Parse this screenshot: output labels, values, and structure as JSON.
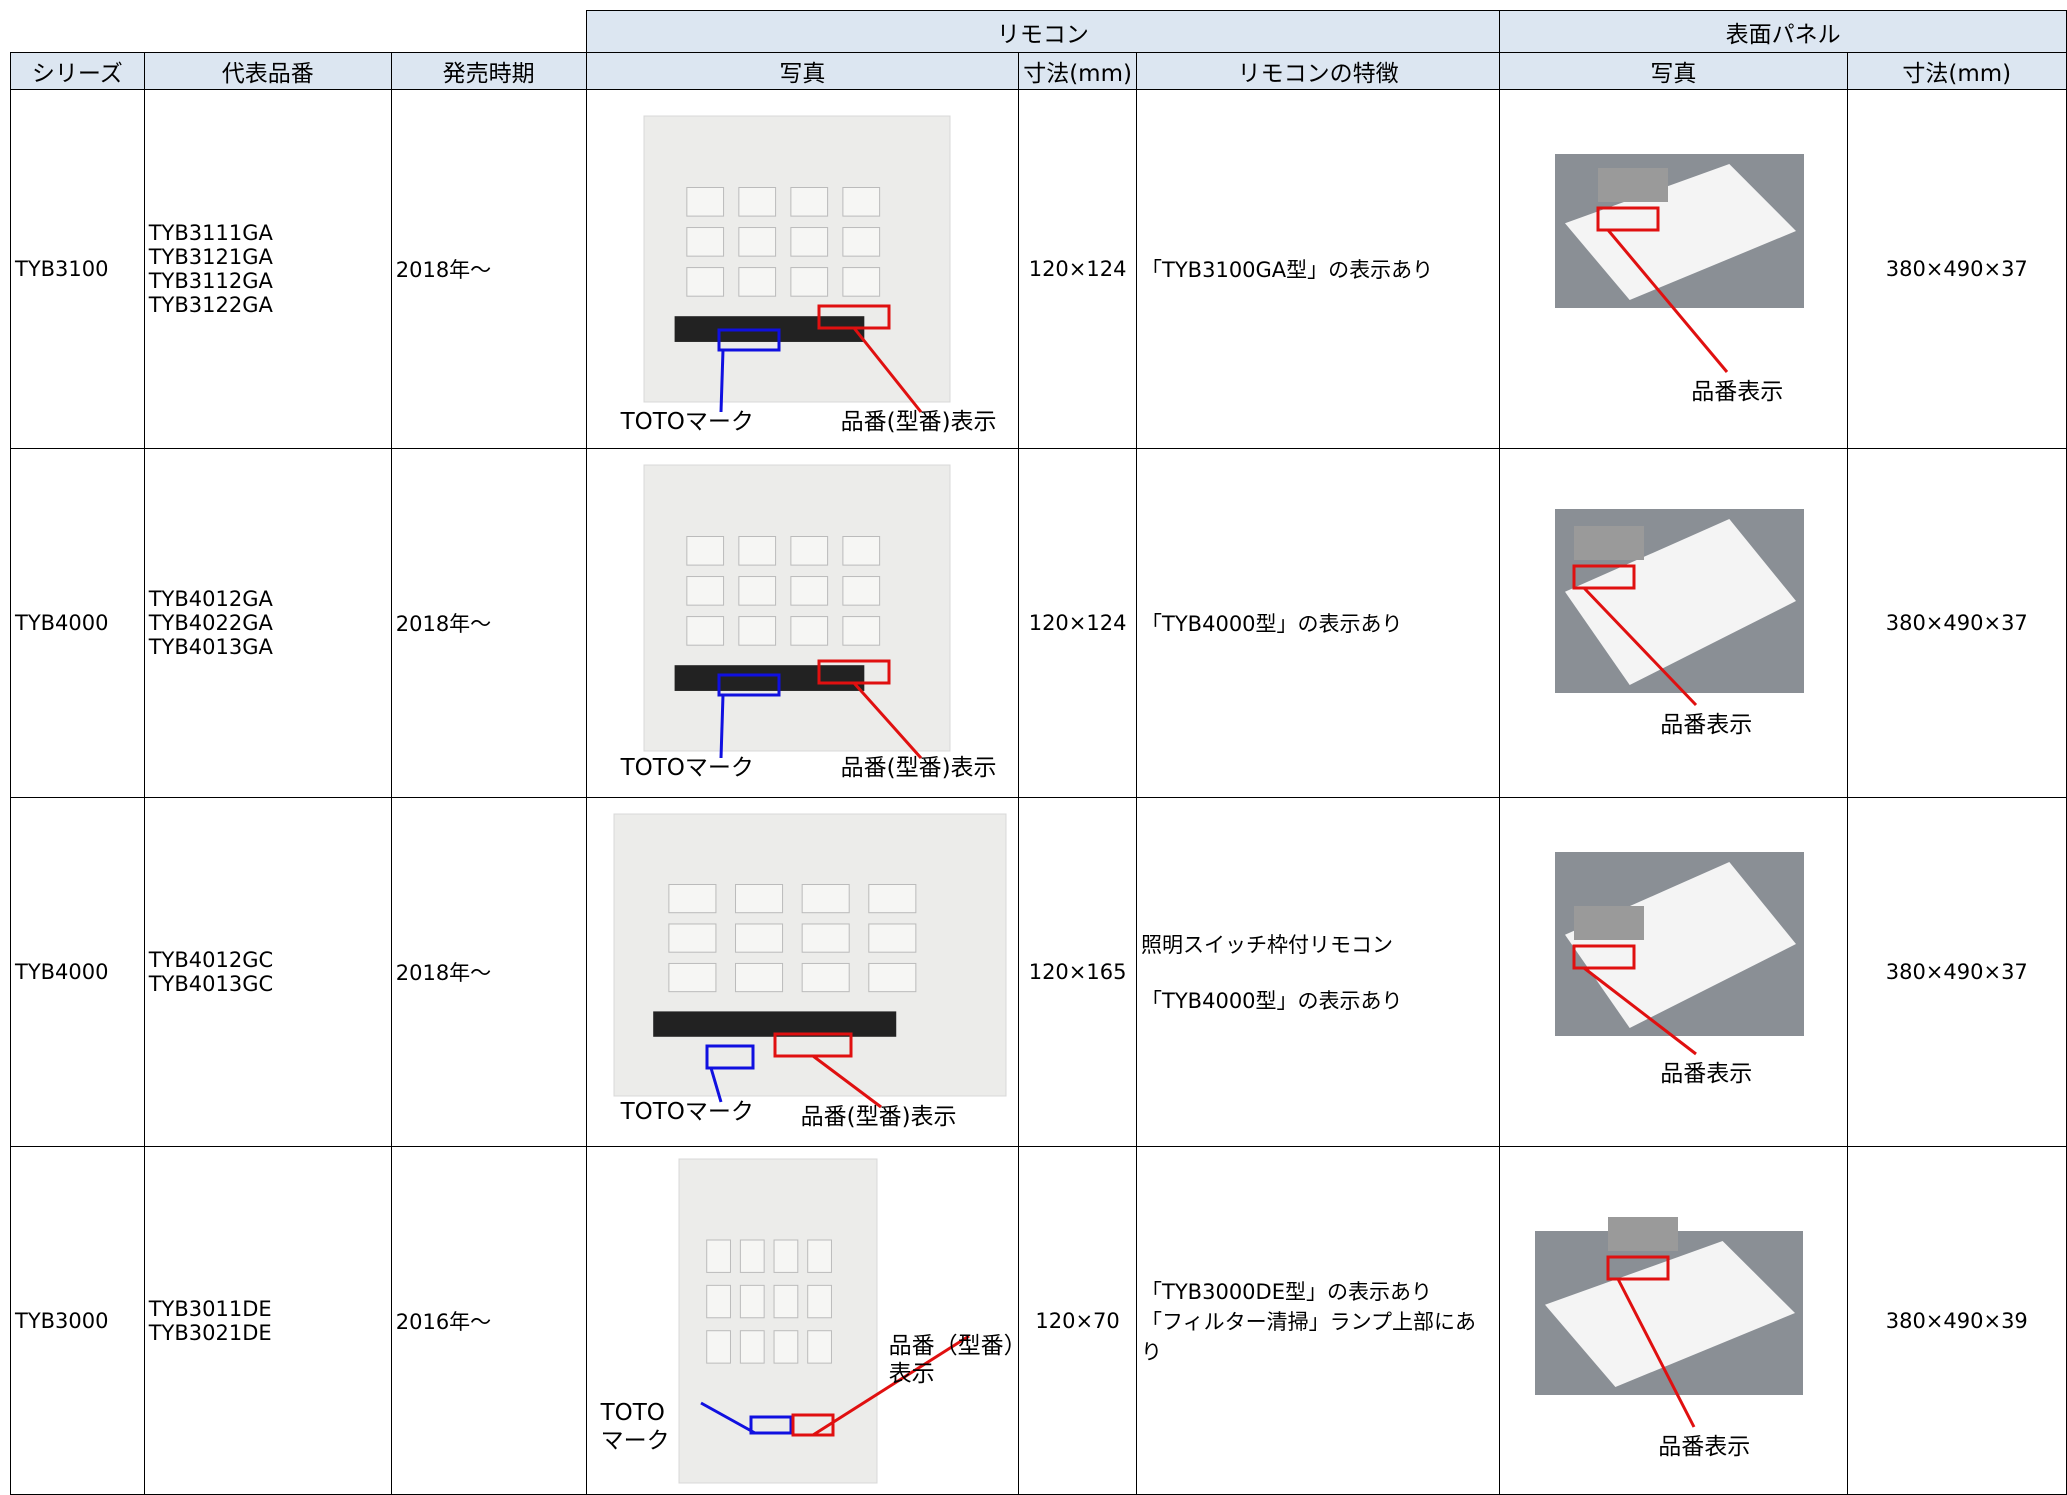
{
  "header": {
    "groups": [
      "リモコン",
      "表面パネル"
    ],
    "columns": [
      "シリーズ",
      "代表品番",
      "発売時期",
      "写真",
      "寸法(mm)",
      "リモコンの特徴",
      "写真",
      "寸法(mm)"
    ]
  },
  "rows": [
    {
      "series": "TYB3100",
      "models": [
        "TYB3111GA",
        "TYB3121GA",
        "TYB3112GA",
        "TYB3122GA"
      ],
      "release": "2018年～",
      "remote_mark_label": [
        "TOTOマーク"
      ],
      "remote_model_label": [
        "品番(型番)表示"
      ],
      "remote_size": "120×124",
      "features": [
        "「TYB3100GA型」の表示あり"
      ],
      "panel_label": "品番表示",
      "panel_size": "380×490×37"
    },
    {
      "series": "TYB4000",
      "models": [
        "TYB4012GA",
        "TYB4022GA",
        "TYB4013GA"
      ],
      "release": "2018年～",
      "remote_mark_label": [
        "TOTOマーク"
      ],
      "remote_model_label": [
        "品番(型番)表示"
      ],
      "remote_size": "120×124",
      "features": [
        "「TYB4000型」の表示あり"
      ],
      "panel_label": "品番表示",
      "panel_size": "380×490×37"
    },
    {
      "series": "TYB4000",
      "models": [
        "TYB4012GC",
        "TYB4013GC"
      ],
      "release": "2018年～",
      "remote_mark_label": [
        "TOTOマーク"
      ],
      "remote_model_label": [
        "品番(型番)表示"
      ],
      "remote_size": "120×165",
      "features": [
        "照明スイッチ枠付リモコン",
        "「TYB4000型」の表示あり"
      ],
      "panel_label": "品番表示",
      "panel_size": "380×490×37"
    },
    {
      "series": "TYB3000",
      "models": [
        "TYB3011DE",
        "TYB3021DE"
      ],
      "release": "2016年～",
      "remote_mark_label": [
        "TOTO",
        "マーク"
      ],
      "remote_model_label": [
        "品番（型番）",
        "表示"
      ],
      "remote_size": "120×70",
      "features": [
        "「TYB3000DE型」の表示あり",
        "「フィルター清掃」ランプ上部にあり"
      ],
      "panel_label": "品番表示",
      "panel_size": "380×490×39"
    }
  ]
}
